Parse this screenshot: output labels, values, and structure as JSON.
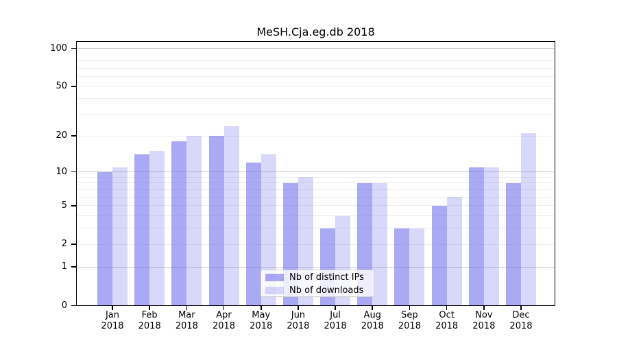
{
  "title": "MeSH.Cja.eg.db 2018",
  "y_axis": {
    "tick_values": [
      0,
      1,
      2,
      5,
      10,
      20,
      50,
      100
    ],
    "tick_labels": [
      "0",
      "1",
      "2",
      "5",
      "10",
      "20",
      "50",
      "100"
    ]
  },
  "x_axis": {
    "year": "2018",
    "months": [
      "Jan",
      "Feb",
      "Mar",
      "Apr",
      "May",
      "Jun",
      "Jul",
      "Aug",
      "Sep",
      "Oct",
      "Nov",
      "Dec"
    ]
  },
  "legend": {
    "items": [
      {
        "label": "Nb of distinct IPs",
        "swatch": "dark-purple-swatch"
      },
      {
        "label": "Nb of downloads",
        "swatch": "light-purple-swatch"
      }
    ]
  },
  "chart_data": {
    "type": "bar",
    "title": "MeSH.Cja.eg.db 2018",
    "categories": [
      "Jan 2018",
      "Feb 2018",
      "Mar 2018",
      "Apr 2018",
      "May 2018",
      "Jun 2018",
      "Jul 2018",
      "Aug 2018",
      "Sep 2018",
      "Oct 2018",
      "Nov 2018",
      "Dec 2018"
    ],
    "series": [
      {
        "name": "Nb of distinct IPs",
        "color": "rgba(112,112,237,0.60)",
        "values": [
          10,
          14,
          18,
          20,
          12,
          8,
          3,
          8,
          3,
          5,
          11,
          8
        ]
      },
      {
        "name": "Nb of downloads",
        "color": "rgba(112,112,237,0.27)",
        "values": [
          11,
          15,
          20,
          24,
          14,
          9,
          4,
          8,
          3,
          6,
          11,
          21
        ]
      }
    ],
    "yscale": "log1p",
    "ylim": [
      0,
      100
    ],
    "yticks": [
      0,
      1,
      2,
      5,
      10,
      20,
      50,
      100
    ],
    "grid": true,
    "legend_position": "lower center inside plot"
  },
  "colors": {
    "bar_base": "#7070ED",
    "bar_distinct_ips": "rgba(112,112,237,0.60)",
    "bar_downloads": "rgba(112,112,237,0.27)",
    "grid_major": "#c8c8c8",
    "grid_minor": "#ededed",
    "axis": "#000000",
    "background": "#ffffff",
    "legend_border": "#cccccc"
  }
}
